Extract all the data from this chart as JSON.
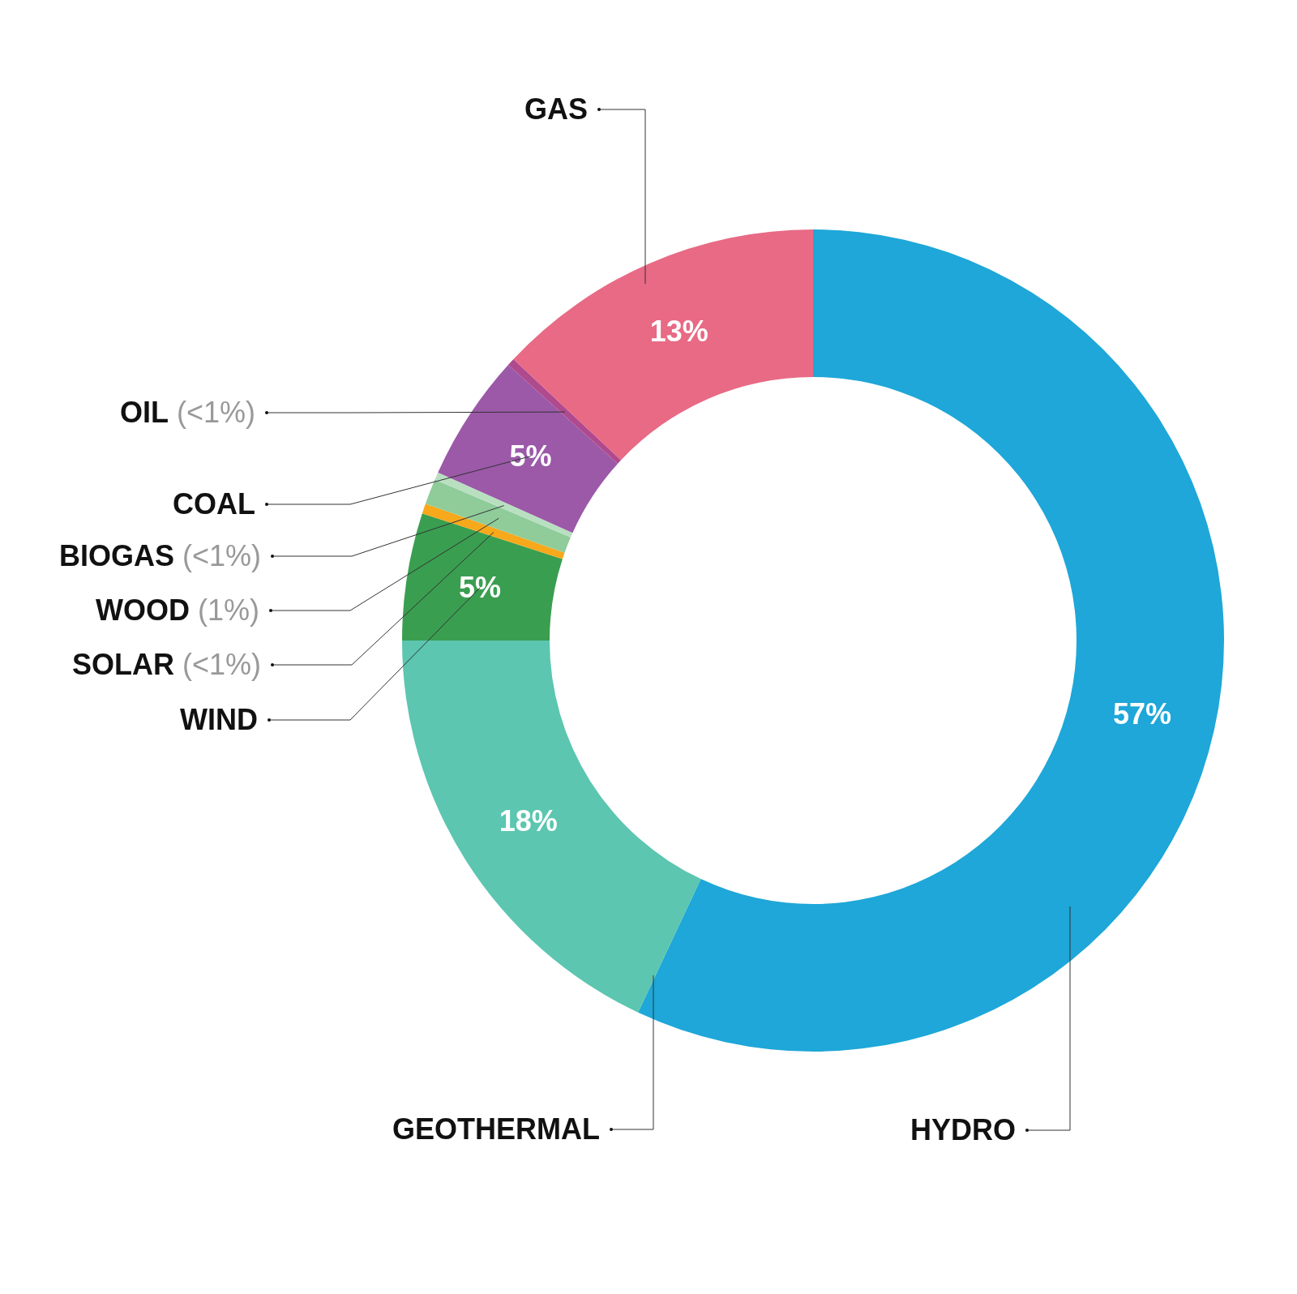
{
  "chart_data": {
    "type": "donut",
    "categories": [
      "HYDRO",
      "GEOTHERMAL",
      "WIND",
      "SOLAR",
      "WOOD",
      "BIOGAS",
      "COAL",
      "OIL",
      "GAS"
    ],
    "values": [
      57,
      18,
      5,
      0.4,
      1,
      0.3,
      5,
      0.3,
      13
    ],
    "colors": [
      "#1ea7d8",
      "#5cc6b0",
      "#3a9e50",
      "#f7a81b",
      "#8fcc9a",
      "#b8e0c0",
      "#9b59a8",
      "#b04a8e",
      "#e86a85"
    ],
    "value_labels": [
      "57%",
      "18%",
      "5%",
      "(<1%)",
      "(1%)",
      "(<1%)",
      "5%",
      "(<1%)",
      "13%"
    ],
    "legend": false
  }
}
